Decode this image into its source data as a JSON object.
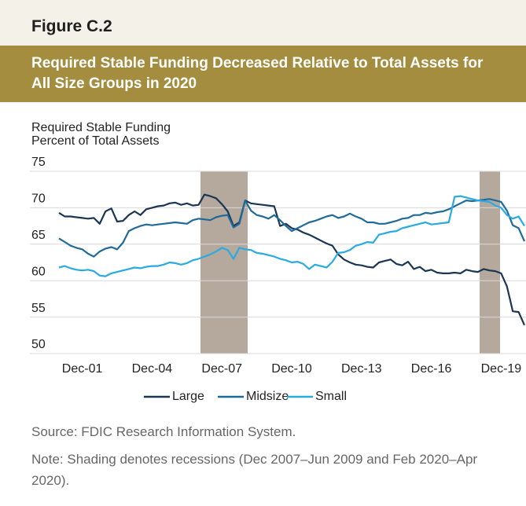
{
  "chart_data": {
    "type": "line",
    "figure_label": "Figure C.2",
    "title": "Required Stable Funding Decreased Relative to Total Assets for All Size Groups in 2020",
    "y_label": [
      "Required Stable Funding",
      "Percent of Total Assets"
    ],
    "categories": [
      null,
      null,
      null,
      null,
      "Dec-01",
      null,
      null,
      null,
      null,
      null,
      null,
      null,
      null,
      null,
      null,
      null,
      "Dec-04",
      null,
      null,
      null,
      null,
      null,
      null,
      null,
      null,
      null,
      null,
      null,
      "Dec-07",
      null,
      null,
      null,
      null,
      null,
      null,
      null,
      null,
      null,
      null,
      null,
      "Dec-10",
      null,
      null,
      null,
      null,
      null,
      null,
      null,
      null,
      null,
      null,
      null,
      "Dec-13",
      null,
      null,
      null,
      null,
      null,
      null,
      null,
      null,
      null,
      null,
      null,
      "Dec-16",
      null,
      null,
      null,
      null,
      null,
      null,
      null,
      null,
      null,
      null,
      null,
      "Dec-19",
      null,
      null,
      null,
      null
    ],
    "series": [
      {
        "name": "Large",
        "color": "#1b3654",
        "values": [
          69.3,
          68.8,
          68.8,
          68.7,
          68.6,
          68.5,
          68.6,
          67.8,
          69.5,
          69.9,
          68.1,
          68.2,
          69,
          69.5,
          69,
          69.8,
          70,
          70.2,
          70.3,
          70.6,
          70.7,
          70.4,
          70.6,
          70.3,
          70.4,
          71.8,
          71.6,
          71.3,
          70.5,
          69.5,
          67.5,
          68,
          71,
          70.6,
          70.5,
          70.4,
          70.3,
          70.2,
          67.5,
          67.8,
          67.2,
          67,
          66.6,
          66.3,
          65.9,
          65.5,
          65.1,
          64.8,
          63.6,
          62.9,
          62.5,
          62.2,
          62.1,
          61.9,
          61.8,
          62.5,
          62.7,
          62.9,
          62.3,
          62.1,
          62.6,
          61.6,
          61.9,
          61.3,
          61.5,
          61.1,
          61,
          61,
          61.1,
          61,
          61.5,
          61.3,
          61.2,
          61.6,
          61.4,
          61.3,
          61,
          59.2,
          55.8,
          55.7,
          53.9
        ]
      },
      {
        "name": "Midsize",
        "color": "#1f6a9a",
        "values": [
          65.8,
          65.3,
          64.8,
          64.5,
          64.3,
          63.7,
          63.3,
          64,
          64.4,
          64.6,
          64.3,
          65.2,
          66.8,
          67.2,
          67.5,
          67.7,
          67.6,
          67.7,
          67.8,
          67.9,
          68,
          67.9,
          67.8,
          68.3,
          68.5,
          68.4,
          68.3,
          68.7,
          68.9,
          69,
          67.3,
          67.8,
          71,
          69.6,
          69,
          68.8,
          68.5,
          69,
          68.3,
          67.5,
          66.8,
          67.2,
          67.6,
          68,
          68.2,
          68.5,
          68.8,
          69,
          68.6,
          68.8,
          69.2,
          68.8,
          68.5,
          68,
          68,
          67.8,
          67.8,
          68,
          68.2,
          68.5,
          68.6,
          69,
          69,
          69.3,
          69.2,
          69.4,
          69.5,
          69.8,
          70.2,
          70.6,
          71,
          70.9,
          71,
          71.1,
          71.2,
          71,
          70.8,
          69.6,
          67.6,
          67.2,
          65.4
        ]
      },
      {
        "name": "Small",
        "color": "#29abe2",
        "values": [
          61.8,
          62,
          61.7,
          61.5,
          61.4,
          61.5,
          61.3,
          60.7,
          60.6,
          61,
          61.2,
          61.4,
          61.6,
          61.8,
          61.7,
          61.9,
          62,
          62,
          62.2,
          62.5,
          62.4,
          62.2,
          62.4,
          62.8,
          63,
          63.3,
          63.6,
          64,
          64.5,
          64.2,
          63,
          64.5,
          64.3,
          64.2,
          63.8,
          63.7,
          63.5,
          63.3,
          63,
          62.8,
          62.5,
          62.6,
          62.3,
          61.6,
          62.2,
          62,
          61.8,
          62.6,
          63.8,
          63.9,
          64.2,
          64.8,
          65,
          65.3,
          65.2,
          66.3,
          66.5,
          66.7,
          66.8,
          67.2,
          67.4,
          67.6,
          67.8,
          68,
          67.7,
          67.8,
          67.9,
          68,
          71.5,
          71.6,
          71.4,
          71.2,
          71,
          70.9,
          70.8,
          70.3,
          70,
          69,
          68.5,
          68.8,
          67.5
        ]
      }
    ],
    "ylim": [
      50,
      75
    ],
    "yticks": [
      50,
      55,
      60,
      65,
      70,
      75
    ],
    "grid": true,
    "legend": "bottom",
    "source": "Source: FDIC Research Information System.",
    "note": "Note: Shading denotes recessions (Dec 2007–Jun 2009 and Feb 2020–Apr 2020)."
  }
}
